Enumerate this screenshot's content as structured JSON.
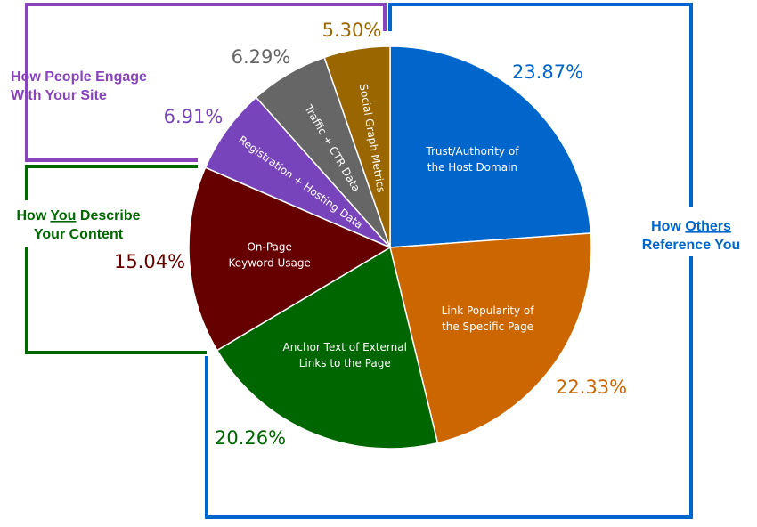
{
  "chart_data": {
    "type": "pie",
    "slices": [
      {
        "label": "Trust/Authority of the Host Domain",
        "value": 23.87,
        "value_label": "23.87%",
        "color": "#0066cc",
        "label_color": "#0066cc"
      },
      {
        "label": "Link Popularity of the Specific Page",
        "value": 22.33,
        "value_label": "22.33%",
        "color": "#cc6600",
        "label_color": "#cc6600"
      },
      {
        "label": "Anchor Text of External Links to the Page",
        "value": 20.26,
        "value_label": "20.26%",
        "color": "#006600",
        "label_color": "#006600"
      },
      {
        "label": "On-Page Keyword Usage",
        "value": 15.04,
        "value_label": "15.04%",
        "color": "#660000",
        "label_color": "#660000"
      },
      {
        "label": "Registration + Hosting Data",
        "value": 6.91,
        "value_label": "6.91%",
        "color": "#7744bb",
        "label_color": "#7744bb"
      },
      {
        "label": "Traffic + CTR Data",
        "value": 6.29,
        "value_label": "6.29%",
        "color": "#666666",
        "label_color": "#666666"
      },
      {
        "label": "Social Graph Metrics",
        "value": 5.3,
        "value_label": "5.30%",
        "color": "#996600",
        "label_color": "#996600"
      }
    ],
    "groups": [
      {
        "line1_pre": "How People Engage",
        "line1_em": "",
        "line1_post": "",
        "line2": "With Your Site",
        "color": "#8844bb"
      },
      {
        "line1_pre": "How ",
        "line1_em": "You",
        "line1_post": " Describe",
        "line2": "Your Content",
        "color": "#006600"
      },
      {
        "line1_pre": "How ",
        "line1_em": "Others",
        "line1_post": "",
        "line2": "Reference You",
        "color": "#0066cc"
      }
    ]
  }
}
